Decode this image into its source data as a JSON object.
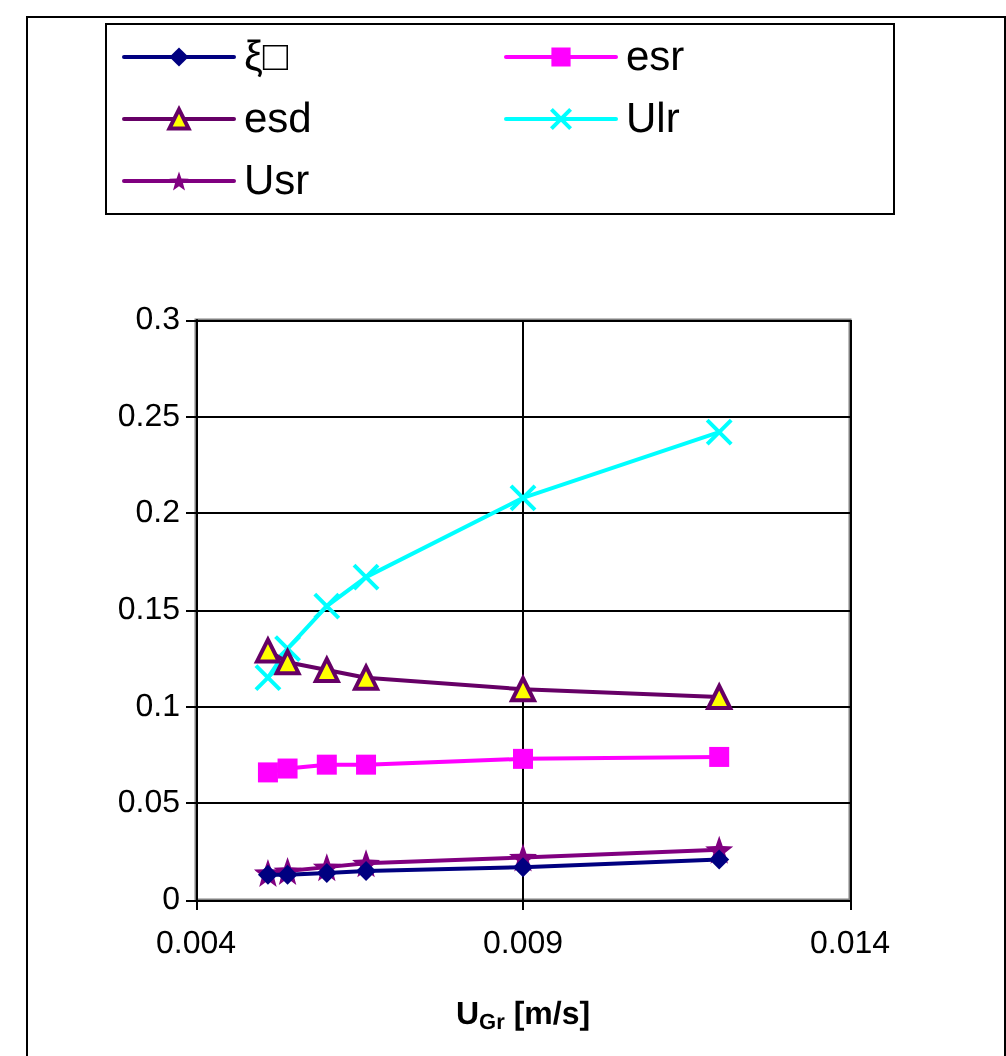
{
  "chart_data": {
    "type": "line",
    "xlabel": "U$_{Gr}$ [m/s]",
    "x": [
      0.0051,
      0.0054,
      0.006,
      0.0066,
      0.009,
      0.012
    ],
    "series": [
      {
        "name": "ξ□",
        "color": "#000080",
        "marker": "diamond",
        "values": [
          0.013,
          0.013,
          0.014,
          0.015,
          0.017,
          0.021
        ]
      },
      {
        "name": "esr",
        "color": "#ff00ff",
        "marker": "square",
        "values": [
          0.066,
          0.068,
          0.07,
          0.07,
          0.073,
          0.074
        ]
      },
      {
        "name": "esd",
        "color": "#660066",
        "marker": "triangle",
        "values": [
          0.129,
          0.123,
          0.119,
          0.115,
          0.109,
          0.105
        ]
      },
      {
        "name": "Ulr",
        "color": "#00ffff",
        "marker": "cross",
        "values": [
          0.115,
          0.13,
          0.152,
          0.167,
          0.208,
          0.242
        ]
      },
      {
        "name": "Usr",
        "color": "#800080",
        "marker": "star",
        "values": [
          0.014,
          0.015,
          0.017,
          0.019,
          0.022,
          0.026
        ]
      }
    ],
    "xlim": [
      0.004,
      0.014
    ],
    "xticks": [
      0.004,
      0.009,
      0.014
    ],
    "ylim": [
      0,
      0.3
    ],
    "yticks": [
      0,
      0.05,
      0.1,
      0.15,
      0.2,
      0.25,
      0.3
    ],
    "grid": true,
    "legend": "top",
    "line_style": "solid"
  }
}
